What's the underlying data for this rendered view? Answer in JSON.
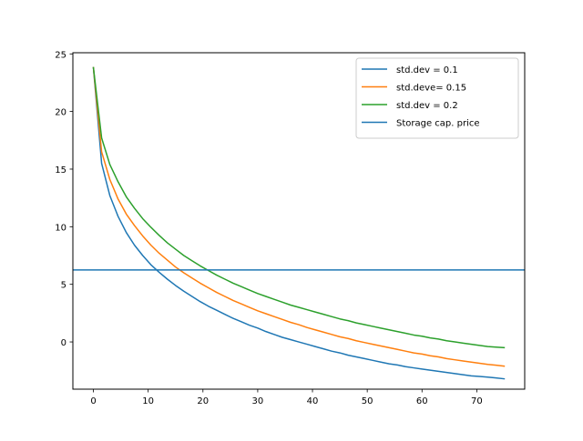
{
  "chart_data": {
    "type": "line",
    "title": "",
    "xlabel": "",
    "ylabel": "",
    "xlim": [
      -3.75,
      78.75
    ],
    "ylim": [
      -4.1,
      25.1
    ],
    "xticks": [
      0,
      10,
      20,
      30,
      40,
      50,
      60,
      70
    ],
    "yticks": [
      0,
      5,
      10,
      15,
      20,
      25
    ],
    "grid": false,
    "legend_position": "top-right",
    "x": [
      0,
      1.5,
      3,
      4.5,
      6,
      7.5,
      9,
      10.5,
      12,
      13.5,
      15,
      16.5,
      18,
      19.5,
      21,
      22.5,
      24,
      25.5,
      27,
      28.5,
      30,
      31.5,
      33,
      34.5,
      36,
      37.5,
      39,
      40.5,
      42,
      43.5,
      45,
      46.5,
      48,
      49.5,
      51,
      52.5,
      54,
      55.5,
      57,
      58.5,
      60,
      61.5,
      63,
      64.5,
      66,
      67.5,
      69,
      70.5,
      72,
      73.5,
      75
    ],
    "series": [
      {
        "name": "std.dev = 0.1",
        "color": "#1f77b4",
        "values": [
          23.8,
          15.5,
          12.7,
          10.9,
          9.5,
          8.4,
          7.5,
          6.7,
          6.05,
          5.45,
          4.9,
          4.4,
          3.95,
          3.5,
          3.1,
          2.75,
          2.4,
          2.05,
          1.75,
          1.45,
          1.2,
          0.9,
          0.65,
          0.4,
          0.2,
          0.0,
          -0.2,
          -0.4,
          -0.6,
          -0.8,
          -0.95,
          -1.15,
          -1.3,
          -1.45,
          -1.6,
          -1.75,
          -1.9,
          -2.0,
          -2.15,
          -2.25,
          -2.35,
          -2.45,
          -2.55,
          -2.65,
          -2.75,
          -2.85,
          -2.95,
          -3.0,
          -3.05,
          -3.12,
          -3.2
        ]
      },
      {
        "name": "std.deve= 0.15",
        "color": "#ff7f0e",
        "values": [
          23.8,
          16.5,
          14.1,
          12.4,
          11.1,
          10.1,
          9.2,
          8.4,
          7.7,
          7.1,
          6.5,
          6.0,
          5.55,
          5.1,
          4.7,
          4.3,
          3.95,
          3.6,
          3.3,
          3.0,
          2.7,
          2.45,
          2.2,
          1.95,
          1.7,
          1.5,
          1.25,
          1.05,
          0.85,
          0.65,
          0.45,
          0.3,
          0.1,
          -0.05,
          -0.2,
          -0.35,
          -0.5,
          -0.65,
          -0.8,
          -0.95,
          -1.05,
          -1.2,
          -1.3,
          -1.45,
          -1.55,
          -1.65,
          -1.75,
          -1.85,
          -1.95,
          -2.02,
          -2.1
        ]
      },
      {
        "name": "std.dev = 0.2",
        "color": "#2ca02c",
        "values": [
          23.8,
          17.7,
          15.4,
          13.9,
          12.6,
          11.6,
          10.7,
          9.95,
          9.25,
          8.6,
          8.05,
          7.5,
          7.05,
          6.6,
          6.2,
          5.8,
          5.45,
          5.1,
          4.8,
          4.5,
          4.2,
          3.95,
          3.7,
          3.45,
          3.2,
          3.0,
          2.8,
          2.6,
          2.4,
          2.2,
          2.0,
          1.85,
          1.65,
          1.5,
          1.35,
          1.2,
          1.05,
          0.9,
          0.75,
          0.6,
          0.5,
          0.35,
          0.25,
          0.1,
          0.0,
          -0.1,
          -0.2,
          -0.3,
          -0.4,
          -0.45,
          -0.5
        ]
      }
    ],
    "hlines": [
      {
        "name": "Storage cap. price",
        "color": "#1f77b4",
        "y": 6.25
      }
    ]
  }
}
